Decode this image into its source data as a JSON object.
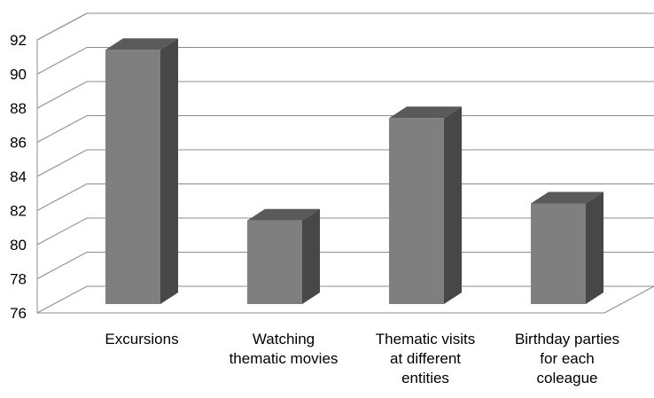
{
  "chart_data": {
    "type": "bar",
    "style": "3d-column",
    "title": "",
    "xlabel": "",
    "ylabel": "",
    "ylim": [
      76,
      92
    ],
    "yticks": [
      76,
      78,
      80,
      82,
      84,
      86,
      88,
      90,
      92
    ],
    "grid": true,
    "categories": [
      "Excursions",
      "Watching\nthematic movies",
      "Thematic visits\nat different\nentities",
      "Birthday parties\nfor each\ncoleague"
    ],
    "values": [
      91,
      81,
      87,
      82
    ],
    "colors": {
      "front": "#7f7f7f",
      "side": "#474747",
      "top": "#5a5a5a",
      "grid": "#8c8c8c"
    }
  }
}
